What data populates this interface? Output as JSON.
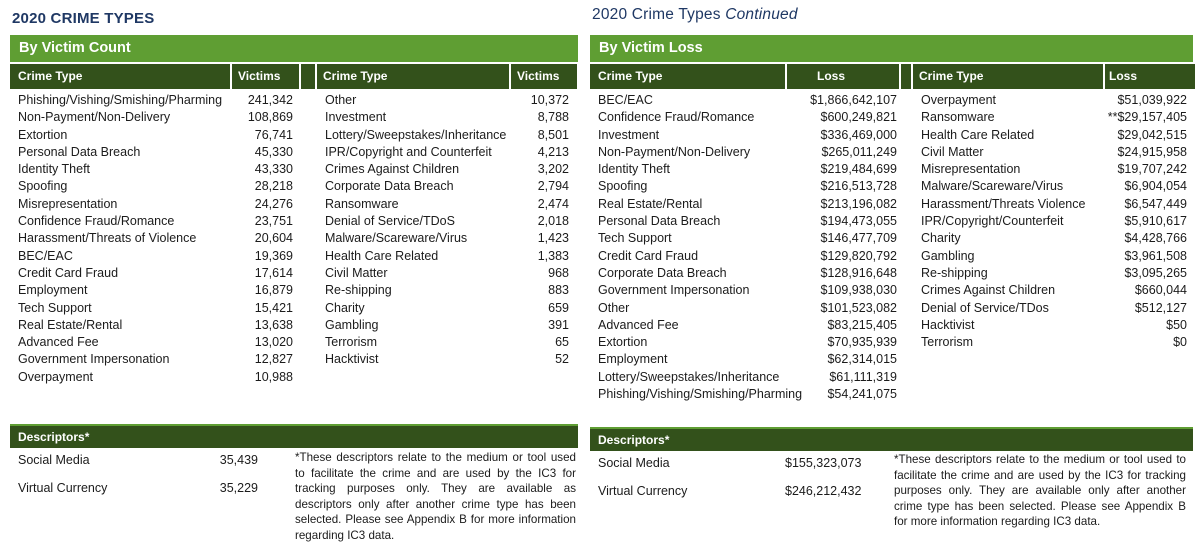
{
  "colors": {
    "banner_green": "#5f9e33",
    "header_dark_green": "#33511b",
    "title_navy": "#1f3864",
    "body_text": "#1b1b1b"
  },
  "left": {
    "title": "2020 CRIME TYPES",
    "banner": "By Victim Count",
    "headers": [
      "Crime Type",
      "Victims",
      "Crime Type",
      "Victims"
    ],
    "group1": [
      [
        "Phishing/Vishing/Smishing/Pharming",
        "241,342"
      ],
      [
        "Non-Payment/Non-Delivery",
        "108,869"
      ],
      [
        "Extortion",
        "76,741"
      ],
      [
        "Personal Data Breach",
        "45,330"
      ],
      [
        "Identity Theft",
        "43,330"
      ],
      [
        "Spoofing",
        "28,218"
      ],
      [
        "Misrepresentation",
        "24,276"
      ],
      [
        "Confidence Fraud/Romance",
        "23,751"
      ],
      [
        "Harassment/Threats of Violence",
        "20,604"
      ],
      [
        "BEC/EAC",
        "19,369"
      ],
      [
        "Credit Card Fraud",
        "17,614"
      ],
      [
        "Employment",
        "16,879"
      ],
      [
        "Tech Support",
        "15,421"
      ],
      [
        "Real Estate/Rental",
        "13,638"
      ],
      [
        "Advanced Fee",
        "13,020"
      ],
      [
        "Government Impersonation",
        "12,827"
      ],
      [
        "Overpayment",
        "10,988"
      ]
    ],
    "group2": [
      [
        "Other",
        "10,372"
      ],
      [
        "Investment",
        "8,788"
      ],
      [
        "Lottery/Sweepstakes/Inheritance",
        "8,501"
      ],
      [
        "IPR/Copyright and Counterfeit",
        "4,213"
      ],
      [
        "Crimes Against Children",
        "3,202"
      ],
      [
        "Corporate Data Breach",
        "2,794"
      ],
      [
        "Ransomware",
        "2,474"
      ],
      [
        "Denial of Service/TDoS",
        "2,018"
      ],
      [
        "Malware/Scareware/Virus",
        "1,423"
      ],
      [
        "Health Care Related",
        "1,383"
      ],
      [
        "Civil Matter",
        "968"
      ],
      [
        "Re-shipping",
        "883"
      ],
      [
        "Charity",
        "659"
      ],
      [
        "Gambling",
        "391"
      ],
      [
        "Terrorism",
        "65"
      ],
      [
        "Hacktivist",
        "52"
      ]
    ],
    "descriptors": {
      "banner": "Descriptors*",
      "rows": [
        [
          "Social Media",
          "35,439"
        ],
        [
          "Virtual Currency",
          "35,229"
        ]
      ],
      "note": "*These descriptors relate to the medium or tool used to facilitate the crime and are used by the IC3 for tracking purposes only. They are available as descriptors only after another crime type has been selected. Please see Appendix B for more information regarding IC3 data."
    }
  },
  "right": {
    "title": "2020 Crime Types ",
    "title_italic": "Continued",
    "banner": "By Victim Loss",
    "headers": [
      "Crime Type",
      "Loss",
      "Crime Type",
      "Loss"
    ],
    "group1": [
      [
        "BEC/EAC",
        "$1,866,642,107"
      ],
      [
        "Confidence Fraud/Romance",
        "$600,249,821"
      ],
      [
        "Investment",
        "$336,469,000"
      ],
      [
        "Non-Payment/Non-Delivery",
        "$265,011,249"
      ],
      [
        "Identity Theft",
        "$219,484,699"
      ],
      [
        "Spoofing",
        "$216,513,728"
      ],
      [
        "Real Estate/Rental",
        "$213,196,082"
      ],
      [
        "Personal Data Breach",
        "$194,473,055"
      ],
      [
        "Tech Support",
        "$146,477,709"
      ],
      [
        "Credit Card Fraud",
        "$129,820,792"
      ],
      [
        "Corporate Data Breach",
        "$128,916,648"
      ],
      [
        "Government Impersonation",
        "$109,938,030"
      ],
      [
        "Other",
        "$101,523,082"
      ],
      [
        "Advanced Fee",
        "$83,215,405"
      ],
      [
        "Extortion",
        "$70,935,939"
      ],
      [
        "Employment",
        "$62,314,015"
      ],
      [
        "Lottery/Sweepstakes/Inheritance",
        "$61,111,319"
      ],
      [
        "Phishing/Vishing/Smishing/Pharming",
        "$54,241,075"
      ]
    ],
    "group2": [
      [
        "Overpayment",
        "$51,039,922"
      ],
      [
        "Ransomware",
        "**$29,157,405"
      ],
      [
        "Health Care Related",
        "$29,042,515"
      ],
      [
        "Civil Matter",
        "$24,915,958"
      ],
      [
        "Misrepresentation",
        "$19,707,242"
      ],
      [
        "Malware/Scareware/Virus",
        "$6,904,054"
      ],
      [
        "Harassment/Threats Violence",
        "$6,547,449"
      ],
      [
        "IPR/Copyright/Counterfeit",
        "$5,910,617"
      ],
      [
        "Charity",
        "$4,428,766"
      ],
      [
        "Gambling",
        "$3,961,508"
      ],
      [
        "Re-shipping",
        "$3,095,265"
      ],
      [
        "Crimes Against Children",
        "$660,044"
      ],
      [
        "Denial of Service/TDos",
        "$512,127"
      ],
      [
        "Hacktivist",
        "$50"
      ],
      [
        "Terrorism",
        "$0"
      ]
    ],
    "descriptors": {
      "banner": "Descriptors*",
      "rows": [
        [
          "Social Media",
          "$155,323,073"
        ],
        [
          "Virtual Currency",
          "$246,212,432"
        ]
      ],
      "note": "*These descriptors relate to the medium or tool used to facilitate the crime and are used by the IC3 for tracking purposes only. They are available only after another crime type has been selected. Please see Appendix B for more information regarding IC3 data."
    }
  }
}
